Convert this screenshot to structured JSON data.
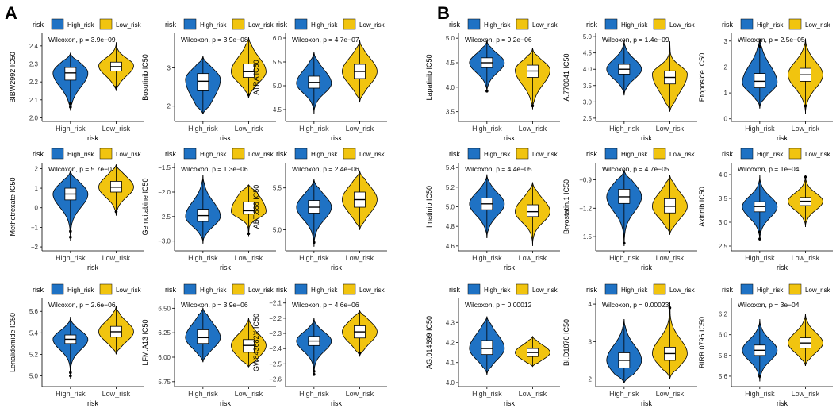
{
  "panel_labels": [
    "A",
    "B"
  ],
  "legend": {
    "title": "risk",
    "high_label": "High_risk",
    "low_label": "Low_risk"
  },
  "colors": {
    "high": "#1f72c4",
    "low": "#f1c40f",
    "outline": "#000000",
    "background": "#ffffff"
  },
  "chart_data": [
    {
      "id": "A1",
      "type": "violin",
      "ylabel": "BIBW2992 IC50",
      "xlabel": "risk",
      "categories": [
        "High_risk",
        "Low_risk"
      ],
      "annotation": "Wilcoxon, p = 3.9e−09",
      "ylim": [
        1.98,
        2.47
      ],
      "yticks": [
        2.0,
        2.1,
        2.2,
        2.3,
        2.4
      ],
      "yticklabels": [
        "2.0",
        "2.1",
        "2.2",
        "2.3",
        "2.4"
      ],
      "series": [
        {
          "name": "High_risk",
          "min": 2.04,
          "q1": 2.21,
          "median": 2.25,
          "q3": 2.28,
          "max": 2.36,
          "mode": 2.25,
          "outliers": [
            2.06,
            2.08
          ]
        },
        {
          "name": "Low_risk",
          "min": 2.15,
          "q1": 2.26,
          "median": 2.285,
          "q3": 2.31,
          "max": 2.42,
          "mode": 2.29,
          "outliers": [
            2.17
          ]
        }
      ]
    },
    {
      "id": "A2",
      "type": "violin",
      "ylabel": "Bosutinib IC50",
      "xlabel": "risk",
      "categories": [
        "High_risk",
        "Low_risk"
      ],
      "annotation": "Wilcoxon, p = 3.9e−08",
      "ylim": [
        1.6,
        3.9
      ],
      "yticks": [
        2,
        3
      ],
      "yticklabels": [
        "2",
        "3"
      ],
      "series": [
        {
          "name": "High_risk",
          "min": 1.8,
          "q1": 2.4,
          "median": 2.65,
          "q3": 2.85,
          "max": 3.3,
          "mode": 2.7,
          "outliers": []
        },
        {
          "name": "Low_risk",
          "min": 2.2,
          "q1": 2.75,
          "median": 2.9,
          "q3": 3.1,
          "max": 3.8,
          "mode": 2.9,
          "outliers": [
            2.3
          ]
        }
      ]
    },
    {
      "id": "A3",
      "type": "violin",
      "ylabel": "ATRA IC50",
      "xlabel": "risk",
      "categories": [
        "High_risk",
        "Low_risk"
      ],
      "annotation": "Wilcoxon, p = 4.7e−07",
      "ylim": [
        4.25,
        6.1
      ],
      "yticks": [
        4.5,
        5.0,
        5.5,
        6.0
      ],
      "yticklabels": [
        "4.5",
        "5.0",
        "5.5",
        "6.0"
      ],
      "series": [
        {
          "name": "High_risk",
          "min": 4.4,
          "q1": 4.95,
          "median": 5.07,
          "q3": 5.2,
          "max": 5.7,
          "mode": 5.05,
          "outliers": []
        },
        {
          "name": "Low_risk",
          "min": 4.65,
          "q1": 5.15,
          "median": 5.3,
          "q3": 5.45,
          "max": 5.95,
          "mode": 5.3,
          "outliers": []
        }
      ]
    },
    {
      "id": "A4",
      "type": "violin",
      "ylabel": "Methotrexate IC50",
      "xlabel": "risk",
      "categories": [
        "High_risk",
        "Low_risk"
      ],
      "annotation": "Wilcoxon, p = 5.7e−07",
      "ylim": [
        -2.2,
        2.3
      ],
      "yticks": [
        -2,
        -1,
        0,
        1,
        2
      ],
      "yticklabels": [
        "−2",
        "−1",
        "0",
        "1",
        "2"
      ],
      "series": [
        {
          "name": "High_risk",
          "min": -1.7,
          "q1": 0.4,
          "median": 0.7,
          "q3": 1.0,
          "max": 1.9,
          "mode": 0.7,
          "outliers": [
            -1.5,
            -1.2
          ]
        },
        {
          "name": "Low_risk",
          "min": -0.4,
          "q1": 0.8,
          "median": 1.05,
          "q3": 1.35,
          "max": 2.2,
          "mode": 1.05,
          "outliers": [
            -0.2
          ]
        }
      ]
    },
    {
      "id": "A5",
      "type": "violin",
      "ylabel": "Gemcitabine IC50",
      "xlabel": "risk",
      "categories": [
        "High_risk",
        "Low_risk"
      ],
      "annotation": "Wilcoxon, p = 1.3e−06",
      "ylim": [
        -3.2,
        -1.4
      ],
      "yticks": [
        -3.0,
        -2.5,
        -2.0,
        -1.5
      ],
      "yticklabels": [
        "−3.0",
        "−2.5",
        "−2.0",
        "−1.5"
      ],
      "series": [
        {
          "name": "High_risk",
          "min": -3.05,
          "q1": -2.6,
          "median": -2.48,
          "q3": -2.35,
          "max": -1.65,
          "mode": -2.5,
          "outliers": []
        },
        {
          "name": "Low_risk",
          "min": -2.9,
          "q1": -2.45,
          "median": -2.38,
          "q3": -2.2,
          "max": -1.85,
          "mode": -2.4,
          "outliers": [
            -2.85
          ]
        }
      ]
    },
    {
      "id": "A6",
      "type": "violin",
      "ylabel": "ABT.888 IC50",
      "xlabel": "risk",
      "categories": [
        "High_risk",
        "Low_risk"
      ],
      "annotation": "Wilcoxon, p = 2.4e−06",
      "ylim": [
        4.75,
        5.8
      ],
      "yticks": [
        5.0,
        5.5
      ],
      "yticklabels": [
        "5.0",
        "5.5"
      ],
      "series": [
        {
          "name": "High_risk",
          "min": 4.8,
          "q1": 5.2,
          "median": 5.27,
          "q3": 5.35,
          "max": 5.6,
          "mode": 5.27,
          "outliers": [
            4.85
          ]
        },
        {
          "name": "Low_risk",
          "min": 5.0,
          "q1": 5.27,
          "median": 5.36,
          "q3": 5.45,
          "max": 5.7,
          "mode": 5.36,
          "outliers": []
        }
      ]
    },
    {
      "id": "A7",
      "type": "violin",
      "ylabel": "Lenalidomide IC50",
      "xlabel": "risk",
      "categories": [
        "High_risk",
        "Low_risk"
      ],
      "annotation": "Wilcoxon, p = 2.6e−06",
      "ylim": [
        4.9,
        5.72
      ],
      "yticks": [
        5.0,
        5.2,
        5.4,
        5.6
      ],
      "yticklabels": [
        "5.0",
        "5.2",
        "5.4",
        "5.6"
      ],
      "series": [
        {
          "name": "High_risk",
          "min": 4.97,
          "q1": 5.3,
          "median": 5.34,
          "q3": 5.38,
          "max": 5.55,
          "mode": 5.34,
          "outliers": [
            5.0,
            5.03
          ]
        },
        {
          "name": "Low_risk",
          "min": 5.2,
          "q1": 5.36,
          "median": 5.41,
          "q3": 5.46,
          "max": 5.65,
          "mode": 5.41,
          "outliers": []
        }
      ]
    },
    {
      "id": "A8",
      "type": "violin",
      "ylabel": "LFM.A13 IC50",
      "xlabel": "risk",
      "categories": [
        "High_risk",
        "Low_risk"
      ],
      "annotation": "Wilcoxon, p = 3.9e−06",
      "ylim": [
        5.7,
        6.6
      ],
      "yticks": [
        5.75,
        6.0,
        6.25,
        6.5
      ],
      "yticklabels": [
        "5.75",
        "6.00",
        "6.25",
        "6.50"
      ],
      "series": [
        {
          "name": "High_risk",
          "min": 5.95,
          "q1": 6.14,
          "median": 6.2,
          "q3": 6.28,
          "max": 6.5,
          "mode": 6.2,
          "outliers": []
        },
        {
          "name": "Low_risk",
          "min": 5.9,
          "q1": 6.05,
          "median": 6.12,
          "q3": 6.18,
          "max": 6.4,
          "mode": 6.12,
          "outliers": []
        }
      ]
    },
    {
      "id": "A9",
      "type": "violin",
      "ylabel": "GW843682X IC50",
      "xlabel": "risk",
      "categories": [
        "High_risk",
        "Low_risk"
      ],
      "annotation": "Wilcoxon, p = 4.6e−06",
      "ylim": [
        -2.65,
        -2.07
      ],
      "yticks": [
        -2.6,
        -2.5,
        -2.4,
        -2.3,
        -2.2,
        -2.1
      ],
      "yticklabels": [
        "−2.6",
        "−2.5",
        "−2.4",
        "−2.3",
        "−2.2",
        "−2.1"
      ],
      "series": [
        {
          "name": "High_risk",
          "min": -2.58,
          "q1": -2.38,
          "median": -2.35,
          "q3": -2.32,
          "max": -2.2,
          "mode": -2.35,
          "outliers": [
            -2.57,
            -2.55
          ]
        },
        {
          "name": "Low_risk",
          "min": -2.45,
          "q1": -2.33,
          "median": -2.29,
          "q3": -2.25,
          "max": -2.15,
          "mode": -2.29,
          "outliers": [
            -2.43
          ]
        }
      ]
    },
    {
      "id": "B1",
      "type": "violin",
      "ylabel": "Lapatinib IC50",
      "xlabel": "risk",
      "categories": [
        "High_risk",
        "Low_risk"
      ],
      "annotation": "Wilcoxon, p = 9.2e−06",
      "ylim": [
        3.3,
        5.1
      ],
      "yticks": [
        3.5,
        4.0,
        4.5,
        5.0
      ],
      "yticklabels": [
        "3.5",
        "4.0",
        "4.5",
        "5.0"
      ],
      "series": [
        {
          "name": "High_risk",
          "min": 3.9,
          "q1": 4.4,
          "median": 4.5,
          "q3": 4.6,
          "max": 4.95,
          "mode": 4.5,
          "outliers": [
            3.92
          ]
        },
        {
          "name": "Low_risk",
          "min": 3.55,
          "q1": 4.2,
          "median": 4.33,
          "q3": 4.45,
          "max": 4.8,
          "mode": 4.35,
          "outliers": [
            3.62
          ]
        }
      ]
    },
    {
      "id": "B2",
      "type": "violin",
      "ylabel": "A.770041 IC50",
      "xlabel": "risk",
      "categories": [
        "High_risk",
        "Low_risk"
      ],
      "annotation": "Wilcoxon, p = 1.4e−09",
      "ylim": [
        2.4,
        5.1
      ],
      "yticks": [
        2.5,
        3.0,
        3.5,
        4.0,
        4.5,
        5.0
      ],
      "yticklabels": [
        "2.5",
        "3.0",
        "3.5",
        "4.0",
        "4.5",
        "5.0"
      ],
      "series": [
        {
          "name": "High_risk",
          "min": 3.2,
          "q1": 3.85,
          "median": 4.0,
          "q3": 4.15,
          "max": 4.9,
          "mode": 4.0,
          "outliers": []
        },
        {
          "name": "Low_risk",
          "min": 2.7,
          "q1": 3.55,
          "median": 3.75,
          "q3": 3.95,
          "max": 4.85,
          "mode": 3.85,
          "outliers": []
        }
      ]
    },
    {
      "id": "B3",
      "type": "violin",
      "ylabel": "Etoposide IC50",
      "xlabel": "risk",
      "categories": [
        "High_risk",
        "Low_risk"
      ],
      "annotation": "Wilcoxon, p = 2.5e−05",
      "ylim": [
        -0.1,
        3.3
      ],
      "yticks": [
        0,
        1,
        2,
        3
      ],
      "yticklabels": [
        "0",
        "1",
        "2",
        "3"
      ],
      "series": [
        {
          "name": "High_risk",
          "min": 0.4,
          "q1": 1.2,
          "median": 1.45,
          "q3": 1.75,
          "max": 3.1,
          "mode": 1.4,
          "outliers": [
            2.8
          ]
        },
        {
          "name": "Low_risk",
          "min": 0.2,
          "q1": 1.45,
          "median": 1.7,
          "q3": 1.95,
          "max": 3.1,
          "mode": 1.7,
          "outliers": [
            0.5
          ]
        }
      ]
    },
    {
      "id": "B4",
      "type": "violin",
      "ylabel": "Imatinib IC50",
      "xlabel": "risk",
      "categories": [
        "High_risk",
        "Low_risk"
      ],
      "annotation": "Wilcoxon, p = 4.4e−05",
      "ylim": [
        4.55,
        5.45
      ],
      "yticks": [
        4.6,
        4.8,
        5.0,
        5.2,
        5.4
      ],
      "yticklabels": [
        "4.6",
        "4.8",
        "5.0",
        "5.2",
        "5.4"
      ],
      "series": [
        {
          "name": "High_risk",
          "min": 4.68,
          "q1": 4.97,
          "median": 5.03,
          "q3": 5.09,
          "max": 5.33,
          "mode": 5.03,
          "outliers": []
        },
        {
          "name": "Low_risk",
          "min": 4.6,
          "q1": 4.9,
          "median": 4.95,
          "q3": 5.02,
          "max": 5.25,
          "mode": 4.95,
          "outliers": []
        }
      ]
    },
    {
      "id": "B5",
      "type": "violin",
      "ylabel": "Bryostatin.1 IC50",
      "xlabel": "risk",
      "categories": [
        "High_risk",
        "Low_risk"
      ],
      "annotation": "Wilcoxon, p = 4.7e−05",
      "ylim": [
        -1.65,
        -0.72
      ],
      "yticks": [
        -1.5,
        -1.2,
        -0.9
      ],
      "yticklabels": [
        "−1.5",
        "−1.2",
        "−0.9"
      ],
      "series": [
        {
          "name": "High_risk",
          "min": -1.6,
          "q1": -1.15,
          "median": -1.08,
          "q3": -1.0,
          "max": -0.8,
          "mode": -1.08,
          "outliers": [
            -1.57
          ]
        },
        {
          "name": "Low_risk",
          "min": -1.48,
          "q1": -1.25,
          "median": -1.18,
          "q3": -1.1,
          "max": -0.85,
          "mode": -1.18,
          "outliers": []
        }
      ]
    },
    {
      "id": "B6",
      "type": "violin",
      "ylabel": "Axitinib IC50",
      "xlabel": "risk",
      "categories": [
        "High_risk",
        "Low_risk"
      ],
      "annotation": "Wilcoxon, p = 1e−04",
      "ylim": [
        2.4,
        4.25
      ],
      "yticks": [
        2.5,
        3.0,
        3.5,
        4.0
      ],
      "yticklabels": [
        "2.5",
        "3.0",
        "3.5",
        "4.0"
      ],
      "series": [
        {
          "name": "High_risk",
          "min": 2.6,
          "q1": 3.22,
          "median": 3.33,
          "q3": 3.43,
          "max": 4.0,
          "mode": 3.33,
          "outliers": [
            2.65,
            2.8
          ]
        },
        {
          "name": "Low_risk",
          "min": 2.9,
          "q1": 3.35,
          "median": 3.44,
          "q3": 3.52,
          "max": 4.0,
          "mode": 3.44,
          "outliers": [
            3.95
          ]
        }
      ]
    },
    {
      "id": "B7",
      "type": "violin",
      "ylabel": "AG.014699 IC50",
      "xlabel": "risk",
      "categories": [
        "High_risk",
        "Low_risk"
      ],
      "annotation": "Wilcoxon, p = 0.00012",
      "ylim": [
        3.98,
        4.42
      ],
      "yticks": [
        4.0,
        4.1,
        4.2,
        4.3
      ],
      "yticklabels": [
        "4.0",
        "4.1",
        "4.2",
        "4.3"
      ],
      "series": [
        {
          "name": "High_risk",
          "min": 4.04,
          "q1": 4.14,
          "median": 4.17,
          "q3": 4.21,
          "max": 4.33,
          "mode": 4.17,
          "outliers": []
        },
        {
          "name": "Low_risk",
          "min": 4.08,
          "q1": 4.13,
          "median": 4.15,
          "q3": 4.17,
          "max": 4.23,
          "mode": 4.15,
          "outliers": []
        }
      ]
    },
    {
      "id": "B8",
      "type": "violin",
      "ylabel": "BI.D1870 IC50",
      "xlabel": "risk",
      "categories": [
        "High_risk",
        "Low_risk"
      ],
      "annotation": "Wilcoxon, p = 0.00023",
      "ylim": [
        1.8,
        4.15
      ],
      "yticks": [
        2,
        3,
        4
      ],
      "yticklabels": [
        "2",
        "3",
        "4"
      ],
      "series": [
        {
          "name": "High_risk",
          "min": 1.9,
          "q1": 2.3,
          "median": 2.5,
          "q3": 2.7,
          "max": 3.6,
          "mode": 2.5,
          "outliers": []
        },
        {
          "name": "Low_risk",
          "min": 2.0,
          "q1": 2.5,
          "median": 2.68,
          "q3": 2.85,
          "max": 4.05,
          "mode": 2.68,
          "outliers": [
            3.9
          ]
        }
      ]
    },
    {
      "id": "B9",
      "type": "violin",
      "ylabel": "BIRB.0796 IC50",
      "xlabel": "risk",
      "categories": [
        "High_risk",
        "Low_risk"
      ],
      "annotation": "Wilcoxon, p = 3e−04",
      "ylim": [
        5.5,
        6.35
      ],
      "yticks": [
        5.6,
        5.8,
        6.0,
        6.2
      ],
      "yticklabels": [
        "5.6",
        "5.8",
        "6.0",
        "6.2"
      ],
      "series": [
        {
          "name": "High_risk",
          "min": 5.55,
          "q1": 5.8,
          "median": 5.85,
          "q3": 5.9,
          "max": 6.15,
          "mode": 5.85,
          "outliers": [
            5.6
          ]
        },
        {
          "name": "Low_risk",
          "min": 5.7,
          "q1": 5.87,
          "median": 5.92,
          "q3": 5.97,
          "max": 6.2,
          "mode": 5.92,
          "outliers": []
        }
      ]
    }
  ]
}
